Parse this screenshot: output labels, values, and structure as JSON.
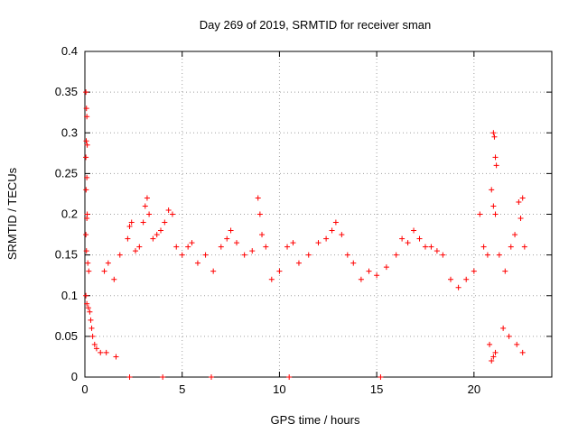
{
  "chart_data": {
    "type": "scatter",
    "title": "Day 269 of 2019, SRMTID for receiver sman",
    "xlabel": "GPS time / hours",
    "ylabel": "SRMTID / TECUs",
    "xlim": [
      0,
      24
    ],
    "ylim": [
      0,
      0.4
    ],
    "xticks": [
      0,
      5,
      10,
      15,
      20
    ],
    "xtick_labels": [
      "0",
      "5",
      "10",
      "15",
      "20"
    ],
    "yticks": [
      0,
      0.05,
      0.1,
      0.15,
      0.2,
      0.25,
      0.3,
      0.35,
      0.4
    ],
    "ytick_labels": [
      "0",
      "0.05",
      "0.1",
      "0.15",
      "0.2",
      "0.25",
      "0.3",
      "0.35",
      "0.4"
    ],
    "grid": true,
    "marker": "plus",
    "color": "#ff0000",
    "series": [
      {
        "name": "SRMTID",
        "points": [
          [
            0.05,
            0.35
          ],
          [
            0.08,
            0.33
          ],
          [
            0.1,
            0.32
          ],
          [
            0.07,
            0.29
          ],
          [
            0.12,
            0.285
          ],
          [
            0.05,
            0.27
          ],
          [
            0.1,
            0.245
          ],
          [
            0.06,
            0.23
          ],
          [
            0.12,
            0.2
          ],
          [
            0.1,
            0.195
          ],
          [
            0.05,
            0.175
          ],
          [
            0.08,
            0.155
          ],
          [
            0.15,
            0.14
          ],
          [
            0.2,
            0.13
          ],
          [
            0.05,
            0.1
          ],
          [
            0.1,
            0.09
          ],
          [
            0.18,
            0.085
          ],
          [
            0.25,
            0.08
          ],
          [
            0.3,
            0.07
          ],
          [
            0.35,
            0.06
          ],
          [
            0.4,
            0.05
          ],
          [
            0.5,
            0.04
          ],
          [
            0.6,
            0.035
          ],
          [
            0.8,
            0.03
          ],
          [
            1.1,
            0.03
          ],
          [
            1.6,
            0.025
          ],
          [
            2.3,
            0.0
          ],
          [
            4.0,
            0.0
          ],
          [
            6.5,
            0.0
          ],
          [
            10.5,
            0.0
          ],
          [
            15.2,
            0.0
          ],
          [
            1.0,
            0.13
          ],
          [
            1.2,
            0.14
          ],
          [
            1.5,
            0.12
          ],
          [
            1.8,
            0.15
          ],
          [
            2.2,
            0.17
          ],
          [
            2.3,
            0.185
          ],
          [
            2.4,
            0.19
          ],
          [
            2.6,
            0.155
          ],
          [
            2.8,
            0.16
          ],
          [
            3.0,
            0.19
          ],
          [
            3.1,
            0.21
          ],
          [
            3.2,
            0.22
          ],
          [
            3.3,
            0.2
          ],
          [
            3.5,
            0.17
          ],
          [
            3.7,
            0.175
          ],
          [
            3.9,
            0.18
          ],
          [
            4.1,
            0.19
          ],
          [
            4.3,
            0.205
          ],
          [
            4.5,
            0.2
          ],
          [
            4.7,
            0.16
          ],
          [
            5.0,
            0.15
          ],
          [
            5.3,
            0.16
          ],
          [
            5.5,
            0.165
          ],
          [
            5.8,
            0.14
          ],
          [
            6.2,
            0.15
          ],
          [
            6.6,
            0.13
          ],
          [
            7.0,
            0.16
          ],
          [
            7.3,
            0.17
          ],
          [
            7.5,
            0.18
          ],
          [
            7.8,
            0.165
          ],
          [
            8.2,
            0.15
          ],
          [
            8.6,
            0.155
          ],
          [
            8.9,
            0.22
          ],
          [
            9.0,
            0.2
          ],
          [
            9.1,
            0.175
          ],
          [
            9.3,
            0.16
          ],
          [
            9.6,
            0.12
          ],
          [
            10.0,
            0.13
          ],
          [
            10.4,
            0.16
          ],
          [
            10.7,
            0.165
          ],
          [
            11.0,
            0.14
          ],
          [
            11.5,
            0.15
          ],
          [
            12.0,
            0.165
          ],
          [
            12.4,
            0.17
          ],
          [
            12.7,
            0.18
          ],
          [
            12.9,
            0.19
          ],
          [
            13.2,
            0.175
          ],
          [
            13.5,
            0.15
          ],
          [
            13.8,
            0.14
          ],
          [
            14.2,
            0.12
          ],
          [
            14.6,
            0.13
          ],
          [
            15.0,
            0.125
          ],
          [
            15.5,
            0.135
          ],
          [
            16.0,
            0.15
          ],
          [
            16.3,
            0.17
          ],
          [
            16.6,
            0.165
          ],
          [
            16.9,
            0.18
          ],
          [
            17.2,
            0.17
          ],
          [
            17.5,
            0.16
          ],
          [
            17.8,
            0.16
          ],
          [
            18.1,
            0.155
          ],
          [
            18.4,
            0.15
          ],
          [
            18.8,
            0.12
          ],
          [
            19.2,
            0.11
          ],
          [
            19.6,
            0.12
          ],
          [
            20.0,
            0.13
          ],
          [
            20.3,
            0.2
          ],
          [
            20.5,
            0.16
          ],
          [
            20.7,
            0.15
          ],
          [
            20.9,
            0.23
          ],
          [
            21.0,
            0.3
          ],
          [
            21.05,
            0.295
          ],
          [
            21.1,
            0.27
          ],
          [
            21.15,
            0.26
          ],
          [
            21.0,
            0.21
          ],
          [
            21.1,
            0.2
          ],
          [
            20.9,
            0.02
          ],
          [
            21.0,
            0.025
          ],
          [
            21.1,
            0.03
          ],
          [
            20.8,
            0.04
          ],
          [
            21.3,
            0.15
          ],
          [
            21.6,
            0.13
          ],
          [
            21.9,
            0.16
          ],
          [
            22.1,
            0.175
          ],
          [
            22.3,
            0.215
          ],
          [
            22.5,
            0.22
          ],
          [
            22.4,
            0.195
          ],
          [
            22.6,
            0.16
          ],
          [
            22.5,
            0.03
          ],
          [
            22.2,
            0.04
          ],
          [
            21.8,
            0.05
          ],
          [
            21.5,
            0.06
          ]
        ]
      }
    ]
  }
}
